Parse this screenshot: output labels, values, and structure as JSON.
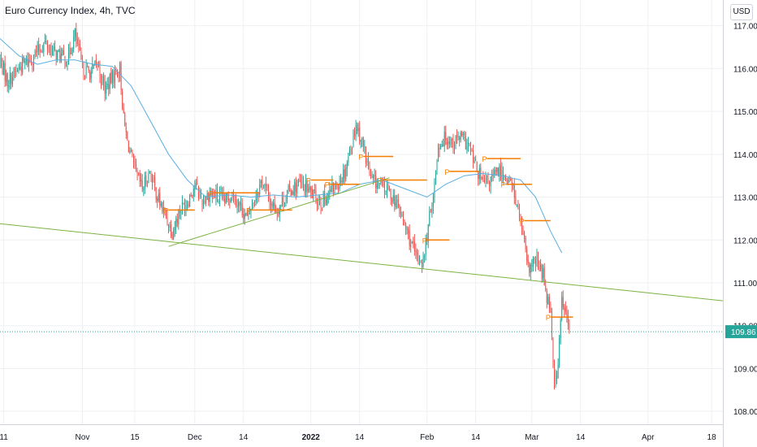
{
  "header": {
    "title": "Euro Currency Index, 4h, TVC",
    "currency_label": "USD"
  },
  "colors": {
    "up": "#26a69a",
    "down": "#ef5350",
    "ma_line": "#5aaee3",
    "trendline": "#7cb342",
    "pivot": "#f57c00",
    "grid": "#eef0f3",
    "price_label_bg": "#26a69a",
    "axis_text": "#131722"
  },
  "chart_data": {
    "type": "candlestick",
    "title": "Euro Currency Index, 4h, TVC",
    "y_axis": {
      "ticks": [
        108.0,
        109.0,
        110.0,
        111.0,
        112.0,
        113.0,
        114.0,
        115.0,
        116.0,
        117.0
      ],
      "range": [
        107.7,
        117.6
      ]
    },
    "x_axis": {
      "range": [
        "2021-10-10",
        "2022-04-21"
      ],
      "ticks": [
        {
          "date": "2021-10-11",
          "label": "11"
        },
        {
          "date": "2021-11-01",
          "label": "Nov"
        },
        {
          "date": "2021-11-15",
          "label": "15"
        },
        {
          "date": "2021-12-01",
          "label": "Dec"
        },
        {
          "date": "2021-12-14",
          "label": "14"
        },
        {
          "date": "2022-01-01",
          "label": "2022"
        },
        {
          "date": "2022-01-14",
          "label": "14"
        },
        {
          "date": "2022-02-01",
          "label": "Feb"
        },
        {
          "date": "2022-02-14",
          "label": "14"
        },
        {
          "date": "2022-03-01",
          "label": "Mar"
        },
        {
          "date": "2022-03-14",
          "label": "14"
        },
        {
          "date": "2022-04-01",
          "label": "Apr"
        },
        {
          "date": "2022-04-18",
          "label": "18"
        }
      ]
    },
    "last_price": {
      "value": 109.86,
      "label": "109.86"
    },
    "price_path": [
      [
        "2021-10-10",
        116.2
      ],
      [
        "2021-10-12",
        115.7
      ],
      [
        "2021-10-14",
        115.9
      ],
      [
        "2021-10-16",
        116.1
      ],
      [
        "2021-10-18",
        116.2
      ],
      [
        "2021-10-20",
        116.4
      ],
      [
        "2021-10-22",
        116.6
      ],
      [
        "2021-10-24",
        116.4
      ],
      [
        "2021-10-26",
        116.3
      ],
      [
        "2021-10-28",
        116.2
      ],
      [
        "2021-10-30",
        116.8
      ],
      [
        "2021-11-01",
        116.0
      ],
      [
        "2021-11-03",
        115.9
      ],
      [
        "2021-11-05",
        116.1
      ],
      [
        "2021-11-07",
        115.5
      ],
      [
        "2021-11-09",
        115.8
      ],
      [
        "2021-11-11",
        116.0
      ],
      [
        "2021-11-12",
        114.8
      ],
      [
        "2021-11-13",
        114.3
      ],
      [
        "2021-11-15",
        113.6
      ],
      [
        "2021-11-17",
        113.2
      ],
      [
        "2021-11-19",
        113.6
      ],
      [
        "2021-11-21",
        113.0
      ],
      [
        "2021-11-23",
        112.6
      ],
      [
        "2021-11-25",
        112.2
      ],
      [
        "2021-11-27",
        112.7
      ],
      [
        "2021-11-29",
        112.9
      ],
      [
        "2021-12-01",
        113.3
      ],
      [
        "2021-12-03",
        112.9
      ],
      [
        "2021-12-05",
        113.1
      ],
      [
        "2021-12-07",
        113.0
      ],
      [
        "2021-12-09",
        112.9
      ],
      [
        "2021-12-11",
        113.1
      ],
      [
        "2021-12-13",
        112.8
      ],
      [
        "2021-12-15",
        112.5
      ],
      [
        "2021-12-17",
        113.0
      ],
      [
        "2021-12-19",
        113.4
      ],
      [
        "2021-12-21",
        112.9
      ],
      [
        "2021-12-23",
        112.7
      ],
      [
        "2021-12-25",
        113.0
      ],
      [
        "2021-12-27",
        113.2
      ],
      [
        "2021-12-29",
        113.3
      ],
      [
        "2021-12-31",
        113.2
      ],
      [
        "2022-01-02",
        113.0
      ],
      [
        "2022-01-04",
        112.9
      ],
      [
        "2022-01-06",
        113.1
      ],
      [
        "2022-01-08",
        113.3
      ],
      [
        "2022-01-10",
        113.6
      ],
      [
        "2022-01-12",
        114.3
      ],
      [
        "2022-01-13",
        114.7
      ],
      [
        "2022-01-15",
        114.2
      ],
      [
        "2022-01-17",
        113.4
      ],
      [
        "2022-01-19",
        113.3
      ],
      [
        "2022-01-21",
        113.2
      ],
      [
        "2022-01-23",
        113.0
      ],
      [
        "2022-01-25",
        112.6
      ],
      [
        "2022-01-27",
        112.1
      ],
      [
        "2022-01-29",
        111.6
      ],
      [
        "2022-01-31",
        111.5
      ],
      [
        "2022-02-02",
        112.7
      ],
      [
        "2022-02-03",
        113.3
      ],
      [
        "2022-02-04",
        114.2
      ],
      [
        "2022-02-06",
        114.4
      ],
      [
        "2022-02-08",
        114.3
      ],
      [
        "2022-02-10",
        114.4
      ],
      [
        "2022-02-12",
        114.2
      ],
      [
        "2022-02-14",
        113.7
      ],
      [
        "2022-02-16",
        113.3
      ],
      [
        "2022-02-18",
        113.4
      ],
      [
        "2022-02-20",
        113.6
      ],
      [
        "2022-02-22",
        113.5
      ],
      [
        "2022-02-24",
        113.2
      ],
      [
        "2022-02-26",
        112.4
      ],
      [
        "2022-02-28",
        111.3
      ],
      [
        "2022-03-02",
        111.5
      ],
      [
        "2022-03-04",
        111.2
      ],
      [
        "2022-03-05",
        110.7
      ],
      [
        "2022-03-06",
        110.4
      ],
      [
        "2022-03-07",
        108.6
      ],
      [
        "2022-03-08",
        109.1
      ],
      [
        "2022-03-09",
        110.6
      ],
      [
        "2022-03-11",
        109.9
      ]
    ],
    "moving_average": [
      [
        "2021-10-10",
        116.7
      ],
      [
        "2021-10-15",
        116.3
      ],
      [
        "2021-10-20",
        116.1
      ],
      [
        "2021-10-25",
        116.2
      ],
      [
        "2021-10-30",
        116.2
      ],
      [
        "2021-11-04",
        116.1
      ],
      [
        "2021-11-09",
        116.05
      ],
      [
        "2021-11-14",
        115.6
      ],
      [
        "2021-11-19",
        114.8
      ],
      [
        "2021-11-24",
        114.0
      ],
      [
        "2021-11-29",
        113.4
      ],
      [
        "2021-12-04",
        113.0
      ],
      [
        "2021-12-10",
        113.05
      ],
      [
        "2021-12-16",
        113.0
      ],
      [
        "2021-12-22",
        113.05
      ],
      [
        "2021-12-28",
        113.0
      ],
      [
        "2022-01-03",
        113.05
      ],
      [
        "2022-01-09",
        113.1
      ],
      [
        "2022-01-14",
        113.3
      ],
      [
        "2022-01-20",
        113.4
      ],
      [
        "2022-01-26",
        113.2
      ],
      [
        "2022-02-01",
        113.0
      ],
      [
        "2022-02-06",
        113.3
      ],
      [
        "2022-02-11",
        113.5
      ],
      [
        "2022-02-16",
        113.55
      ],
      [
        "2022-02-21",
        113.5
      ],
      [
        "2022-02-26",
        113.4
      ],
      [
        "2022-03-02",
        113.0
      ],
      [
        "2022-03-06",
        112.2
      ],
      [
        "2022-03-09",
        111.7
      ]
    ],
    "trendlines": [
      {
        "from": [
          "2021-10-10",
          112.38
        ],
        "to": [
          "2022-04-21",
          110.58
        ]
      },
      {
        "from": [
          "2021-11-24",
          111.85
        ],
        "to": [
          "2022-01-22",
          113.45
        ]
      }
    ],
    "pivots": [
      {
        "date": "2021-11-24",
        "value": 112.7,
        "end": "2021-12-01"
      },
      {
        "date": "2021-12-06",
        "value": 113.1,
        "end": "2021-12-18"
      },
      {
        "date": "2021-12-16",
        "value": 112.7,
        "end": "2021-12-27"
      },
      {
        "date": "2022-01-01",
        "value": 113.4,
        "end": "2022-01-07"
      },
      {
        "date": "2022-01-06",
        "value": 113.3,
        "end": "2022-01-14"
      },
      {
        "date": "2022-01-15",
        "value": 113.95,
        "end": "2022-01-23"
      },
      {
        "date": "2022-01-20",
        "value": 113.4,
        "end": "2022-02-01"
      },
      {
        "date": "2022-02-01",
        "value": 112.0,
        "end": "2022-02-07"
      },
      {
        "date": "2022-02-07",
        "value": 113.6,
        "end": "2022-02-15"
      },
      {
        "date": "2022-02-17",
        "value": 113.9,
        "end": "2022-02-26"
      },
      {
        "date": "2022-02-22",
        "value": 113.3,
        "end": "2022-03-01"
      },
      {
        "date": "2022-02-27",
        "value": 112.45,
        "end": "2022-03-06"
      },
      {
        "date": "2022-03-06",
        "value": 110.2,
        "end": "2022-03-12"
      }
    ],
    "pivot_label": "P",
    "grid": true,
    "legend": "none"
  }
}
